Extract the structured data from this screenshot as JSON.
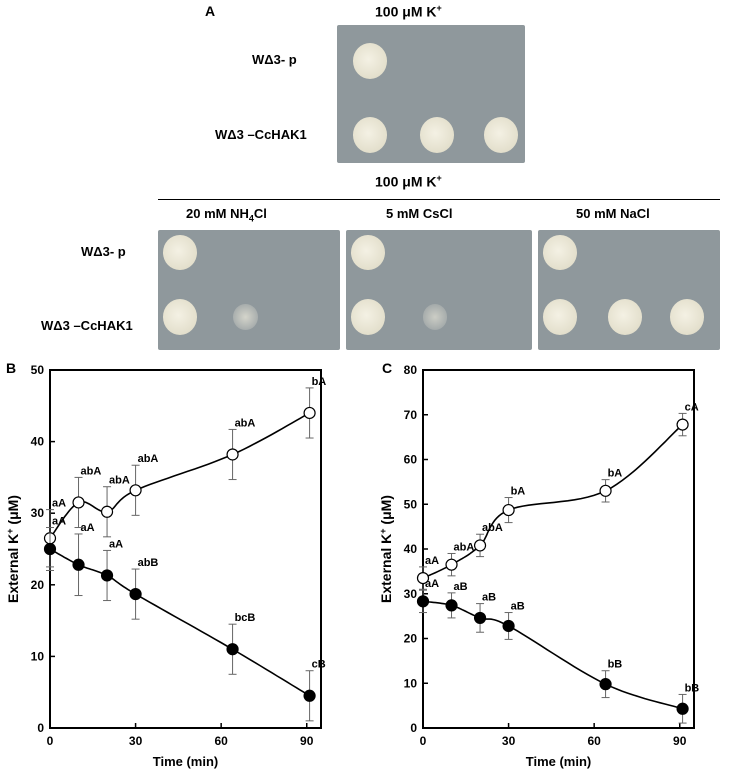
{
  "panel_a": {
    "letter": "A",
    "top_condition": {
      "text": "100 μM K",
      "sup": "+"
    },
    "bottom_condition": {
      "text": "100 μM K",
      "sup": "+"
    },
    "strains": {
      "control": "WΔ3- p",
      "transformant": "WΔ3 –CcHAK1"
    },
    "treatments": [
      {
        "pre": "20 mM NH",
        "sub": "4",
        "post": "Cl"
      },
      {
        "pre": "5 mM CsCl",
        "sub": "",
        "post": ""
      },
      {
        "pre": "50 mM NaCl",
        "sub": "",
        "post": ""
      }
    ],
    "plate_color": "#8f989c",
    "plates": [
      {
        "row_control": [
          1,
          0,
          0
        ],
        "row_transformant": [
          1,
          1,
          1
        ]
      },
      {
        "row_control": [
          1,
          0,
          0
        ],
        "row_transformant": [
          1,
          0.4,
          0
        ]
      },
      {
        "row_control": [
          1,
          0,
          0
        ],
        "row_transformant": [
          1,
          0.3,
          0
        ]
      },
      {
        "row_control": [
          1,
          0,
          0
        ],
        "row_transformant": [
          1,
          1,
          1
        ]
      }
    ]
  },
  "chart_data": [
    {
      "panel": "B",
      "type": "scatter",
      "xlabel": "Time (min)",
      "ylabel": "External K+ (μM)",
      "xlim": [
        0,
        95
      ],
      "ylim": [
        0,
        50
      ],
      "xticks": [
        0,
        30,
        60,
        90
      ],
      "yticks": [
        0,
        10,
        20,
        30,
        40,
        50
      ],
      "series": [
        {
          "marker": "open",
          "x": [
            0,
            10,
            20,
            30,
            64,
            91
          ],
          "y": [
            26.5,
            31.5,
            30.2,
            33.2,
            38.2,
            44.0
          ],
          "err": [
            4.0,
            3.5,
            3.5,
            3.5,
            3.5,
            3.5
          ],
          "labels": [
            "aA",
            "abA",
            "abA",
            "abA",
            "abA",
            "bA"
          ]
        },
        {
          "marker": "filled",
          "x": [
            0,
            10,
            20,
            30,
            64,
            91
          ],
          "y": [
            25.0,
            22.8,
            21.3,
            18.7,
            11.0,
            4.5
          ],
          "err": [
            3.0,
            4.3,
            3.5,
            3.5,
            3.5,
            3.5
          ],
          "labels": [
            "aA",
            "aA",
            "aA",
            "abB",
            "bcB",
            "cB"
          ]
        }
      ]
    },
    {
      "panel": "C",
      "type": "scatter",
      "xlabel": "Time (min)",
      "ylabel": "External K+ (μM)",
      "xlim": [
        0,
        95
      ],
      "ylim": [
        0,
        80
      ],
      "xticks": [
        0,
        30,
        60,
        90
      ],
      "yticks": [
        0,
        10,
        20,
        30,
        40,
        50,
        60,
        70,
        80
      ],
      "series": [
        {
          "marker": "open",
          "x": [
            0,
            10,
            20,
            30,
            64,
            91
          ],
          "y": [
            33.5,
            36.5,
            40.8,
            48.7,
            53.0,
            67.8
          ],
          "err": [
            2.5,
            2.5,
            2.5,
            2.8,
            2.5,
            2.5
          ],
          "labels": [
            "aA",
            "abA",
            "abA",
            "bA",
            "bA",
            "cA"
          ]
        },
        {
          "marker": "filled",
          "x": [
            0,
            10,
            20,
            30,
            64,
            91
          ],
          "y": [
            28.3,
            27.4,
            24.6,
            22.8,
            9.8,
            4.3
          ],
          "err": [
            2.5,
            2.8,
            3.2,
            3.0,
            3.0,
            3.2
          ],
          "labels": [
            "aA",
            "aB",
            "aB",
            "aB",
            "bB",
            "bB"
          ]
        }
      ]
    }
  ]
}
